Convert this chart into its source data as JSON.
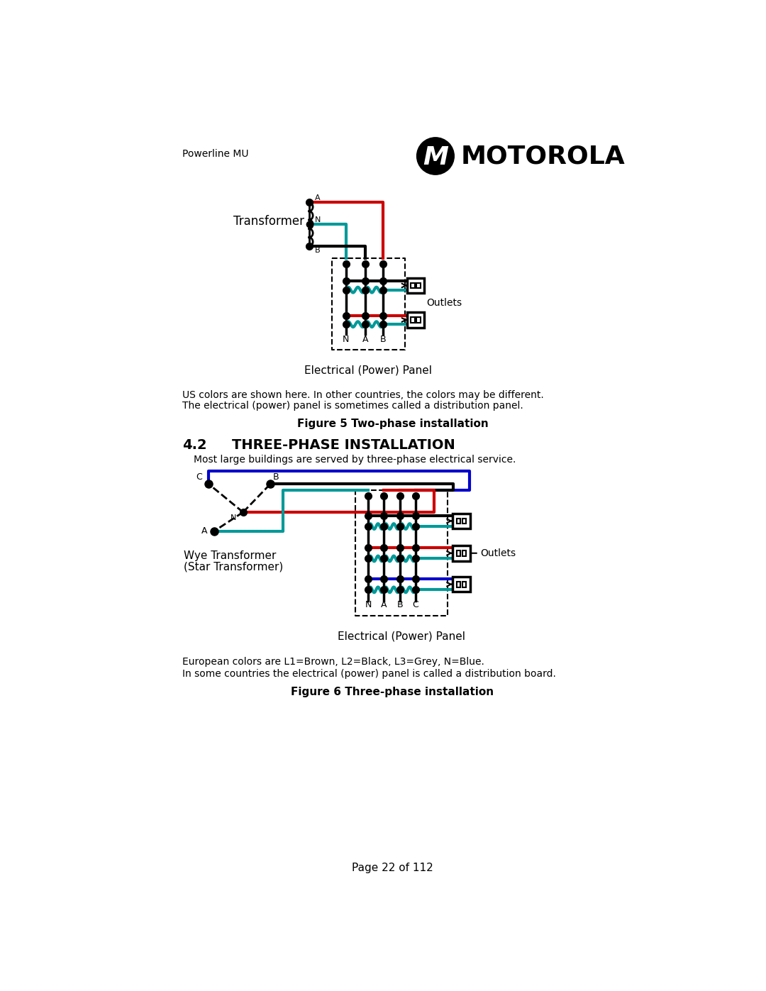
{
  "page_title": "Powerline MU",
  "page_number": "Page 22 of 112",
  "header_text": "MOTOROLA",
  "fig5_caption": "Figure 5 Two-phase installation",
  "fig5_note1": "US colors are shown here. In other countries, the colors may be different.",
  "fig5_note2": "The electrical (power) panel is sometimes called a distribution panel.",
  "fig5_panel_label": "Electrical (Power) Panel",
  "fig5_outlets_label": "Outlets",
  "fig5_transformer_label": "Transformer",
  "section_num": "4.2",
  "section_title": "THREE-PHASE INSTALLATION",
  "section_body": "Most large buildings are served by three-phase electrical service.",
  "fig6_caption": "Figure 6 Three-phase installation",
  "fig6_note1": "European colors are L1=Brown, L2=Black, L3=Grey, N=Blue.",
  "fig6_note2": "In some countries the electrical (power) panel is called a distribution board.",
  "fig6_panel_label": "Electrical (Power) Panel",
  "fig6_outlets_label": "Outlets",
  "fig6_transformer_label_line1": "Wye Transformer",
  "fig6_transformer_label_line2": "(Star Transformer)",
  "color_red": "#cc0000",
  "color_teal": "#009999",
  "color_black": "#000000",
  "color_blue": "#0000cc",
  "color_white": "#ffffff",
  "bg_color": "#ffffff"
}
